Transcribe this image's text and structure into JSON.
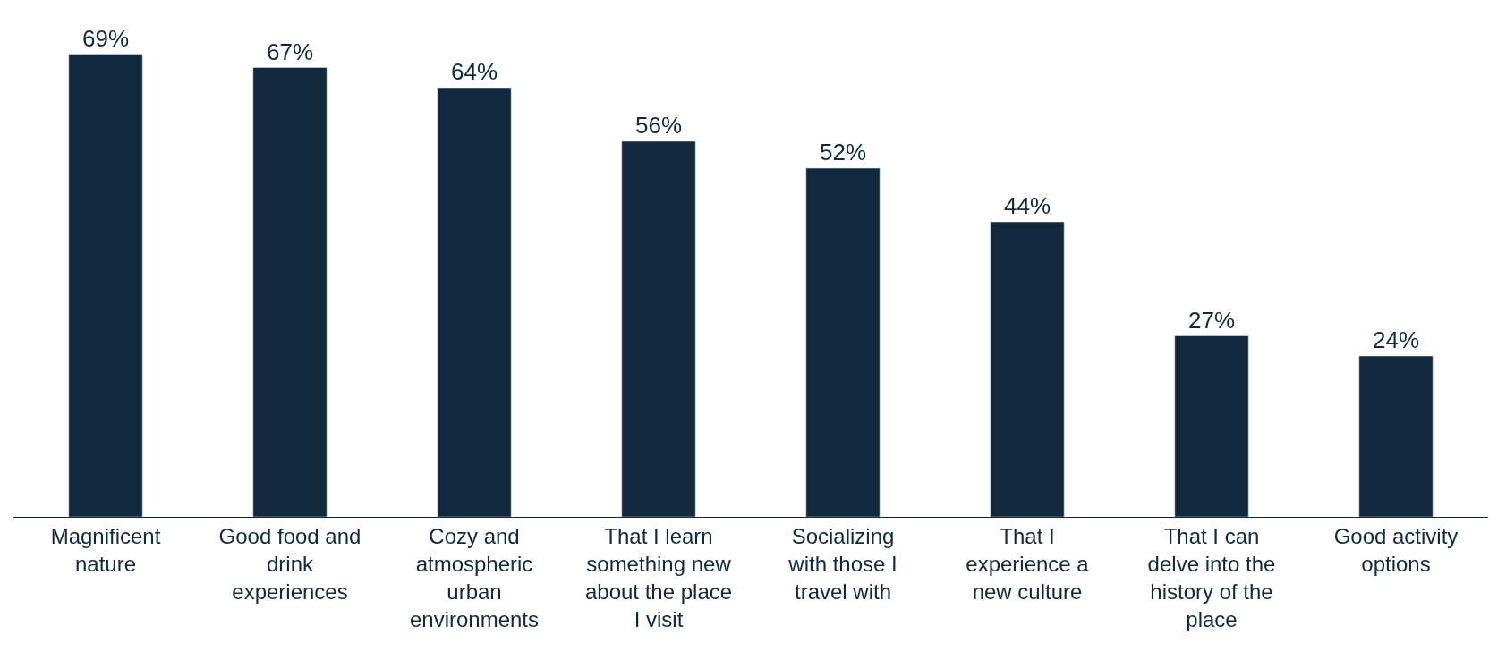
{
  "chart_data": {
    "type": "bar",
    "categories": [
      "Magnificent nature",
      "Good food and drink experiences",
      "Cozy and atmospheric urban environments",
      "That I learn something new about the place I visit",
      "Socializing with those I travel with",
      "That I experience a new culture",
      "That I can delve into the history of the place",
      "Good activity options"
    ],
    "values": [
      69,
      67,
      64,
      56,
      52,
      44,
      27,
      24
    ],
    "value_labels": [
      "69%",
      "67%",
      "64%",
      "56%",
      "52%",
      "44%",
      "27%",
      "24%"
    ],
    "color": "#12293d",
    "legend": false
  }
}
